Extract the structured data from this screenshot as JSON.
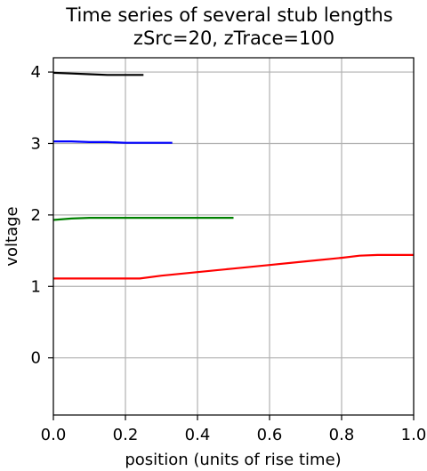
{
  "chart_data": {
    "type": "line",
    "title": "Time series of several stub lengths",
    "subtitle": "zSrc=20, zTrace=100",
    "xlabel": "position (units of rise time)",
    "ylabel": "voltage",
    "xlim": [
      0.0,
      1.0
    ],
    "ylim": [
      -0.8,
      4.2
    ],
    "xticks": [
      "0.0",
      "0.2",
      "0.4",
      "0.6",
      "0.8",
      "1.0"
    ],
    "yticks": [
      "0",
      "1",
      "2",
      "3",
      "4"
    ],
    "grid": true,
    "legend": false,
    "series": [
      {
        "color": "#000000",
        "x": [
          0.0,
          0.05,
          0.1,
          0.15,
          0.2,
          0.25
        ],
        "y": [
          3.99,
          3.98,
          3.97,
          3.96,
          3.96,
          3.96
        ]
      },
      {
        "color": "#0000ff",
        "x": [
          0.0,
          0.05,
          0.1,
          0.15,
          0.2,
          0.25,
          0.33
        ],
        "y": [
          3.03,
          3.03,
          3.02,
          3.02,
          3.01,
          3.01,
          3.01
        ]
      },
      {
        "color": "#008000",
        "x": [
          0.0,
          0.05,
          0.1,
          0.15,
          0.2,
          0.3,
          0.4,
          0.5
        ],
        "y": [
          1.93,
          1.95,
          1.96,
          1.96,
          1.96,
          1.96,
          1.96,
          1.96
        ]
      },
      {
        "color": "#ff0000",
        "x": [
          0.0,
          0.05,
          0.1,
          0.15,
          0.2,
          0.24,
          0.3,
          0.4,
          0.5,
          0.6,
          0.7,
          0.8,
          0.85,
          0.9,
          1.0
        ],
        "y": [
          1.11,
          1.11,
          1.11,
          1.11,
          1.11,
          1.11,
          1.15,
          1.2,
          1.25,
          1.3,
          1.35,
          1.4,
          1.43,
          1.44,
          1.44
        ]
      }
    ]
  }
}
